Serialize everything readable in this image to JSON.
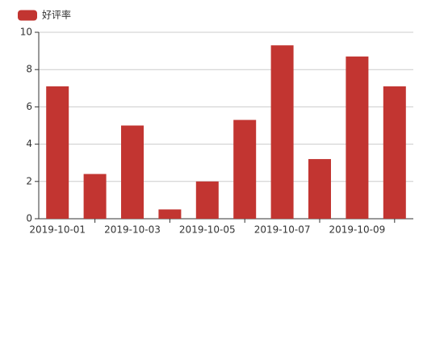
{
  "chart_data": {
    "type": "bar",
    "categories": [
      "2019-10-01",
      null,
      "2019-10-03",
      null,
      "2019-10-05",
      null,
      "2019-10-07",
      null,
      "2019-10-09",
      null
    ],
    "series": [
      {
        "name": "好评率",
        "color": "#c23531",
        "values": [
          7.1,
          2.4,
          5.0,
          0.5,
          2.0,
          5.3,
          9.3,
          3.2,
          8.7,
          7.1
        ]
      }
    ],
    "ylim": [
      0,
      10
    ],
    "yticks": [
      0,
      2,
      4,
      6,
      8,
      10
    ],
    "grid": true,
    "legend": "top-left"
  }
}
